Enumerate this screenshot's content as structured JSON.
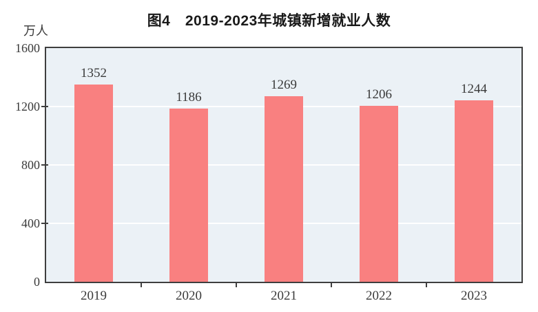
{
  "figure": {
    "title": "图4　2019-2023年城镇新增就业人数",
    "y_axis_unit": "万人"
  },
  "chart_data": {
    "type": "bar",
    "title": "图4　2019-2023年城镇新增就业人数",
    "categories": [
      "2019",
      "2020",
      "2021",
      "2022",
      "2023"
    ],
    "values": [
      1352,
      1186,
      1269,
      1206,
      1244
    ],
    "xlabel": "",
    "ylabel": "万人",
    "ylim": [
      0,
      1600
    ],
    "yticks": [
      0,
      400,
      800,
      1200,
      1600
    ],
    "grid": true,
    "legend": false,
    "colors": {
      "bar": "#F98080",
      "plot_background": "#EBF1F6",
      "gridline": "#FFFFFF",
      "axis": "#3E3E3E",
      "text": "#3A3A3A"
    }
  }
}
